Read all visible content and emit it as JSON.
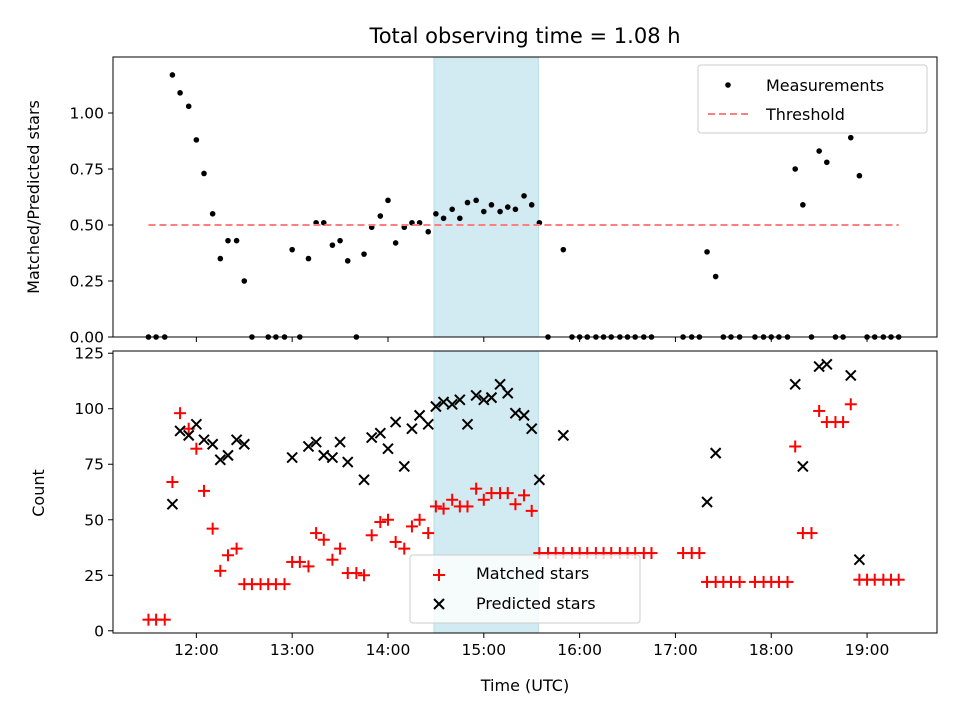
{
  "chart_data": [
    {
      "type": "scatter",
      "title": "Total observing time = 1.08 h",
      "xlabel": "",
      "ylabel": "Matched/Predicted stars",
      "xlim": [
        11.13,
        19.73
      ],
      "ylim": [
        0,
        1.25
      ],
      "yticks": [
        0,
        0.25,
        0.5,
        0.75,
        1.0
      ],
      "ytick_labels": [
        "0.00",
        "0.25",
        "0.50",
        "0.75",
        "1.00"
      ],
      "highlight_span": [
        14.48,
        15.57
      ],
      "legend_position": "top-right",
      "colors": {
        "measurements": "#000000",
        "threshold": "#ff7f7f",
        "span": "#add8e6"
      },
      "series": [
        {
          "name": "Measurements",
          "marker": "dot",
          "points": [
            [
              11.5,
              0
            ],
            [
              11.58,
              0
            ],
            [
              11.67,
              0
            ],
            [
              11.75,
              1.17
            ],
            [
              11.83,
              1.09
            ],
            [
              11.92,
              1.03
            ],
            [
              12.0,
              0.88
            ],
            [
              12.08,
              0.73
            ],
            [
              12.17,
              0.55
            ],
            [
              12.25,
              0.35
            ],
            [
              12.33,
              0.43
            ],
            [
              12.42,
              0.43
            ],
            [
              12.5,
              0.25
            ],
            [
              12.58,
              0
            ],
            [
              12.75,
              0
            ],
            [
              12.83,
              0
            ],
            [
              12.92,
              0
            ],
            [
              13.0,
              0.39
            ],
            [
              13.08,
              0
            ],
            [
              13.17,
              0.35
            ],
            [
              13.25,
              0.51
            ],
            [
              13.33,
              0.51
            ],
            [
              13.42,
              0.41
            ],
            [
              13.5,
              0.43
            ],
            [
              13.58,
              0.34
            ],
            [
              13.67,
              0
            ],
            [
              13.75,
              0.37
            ],
            [
              13.83,
              0.49
            ],
            [
              13.92,
              0.54
            ],
            [
              14.0,
              0.61
            ],
            [
              14.08,
              0.42
            ],
            [
              14.17,
              0.49
            ],
            [
              14.25,
              0.51
            ],
            [
              14.33,
              0.51
            ],
            [
              14.42,
              0.47
            ],
            [
              14.5,
              0.55
            ],
            [
              14.58,
              0.53
            ],
            [
              14.67,
              0.57
            ],
            [
              14.75,
              0.53
            ],
            [
              14.83,
              0.6
            ],
            [
              14.92,
              0.61
            ],
            [
              15.0,
              0.56
            ],
            [
              15.08,
              0.59
            ],
            [
              15.17,
              0.56
            ],
            [
              15.25,
              0.58
            ],
            [
              15.33,
              0.57
            ],
            [
              15.42,
              0.63
            ],
            [
              15.5,
              0.59
            ],
            [
              15.58,
              0.51
            ],
            [
              15.67,
              0
            ],
            [
              15.83,
              0.39
            ],
            [
              15.92,
              0
            ],
            [
              16.0,
              0
            ],
            [
              16.08,
              0
            ],
            [
              16.17,
              0
            ],
            [
              16.25,
              0
            ],
            [
              16.33,
              0
            ],
            [
              16.42,
              0
            ],
            [
              16.5,
              0
            ],
            [
              16.58,
              0
            ],
            [
              16.67,
              0
            ],
            [
              16.75,
              0
            ],
            [
              17.08,
              0
            ],
            [
              17.17,
              0
            ],
            [
              17.25,
              0
            ],
            [
              17.33,
              0.38
            ],
            [
              17.42,
              0.27
            ],
            [
              17.5,
              0
            ],
            [
              17.58,
              0
            ],
            [
              17.67,
              0
            ],
            [
              17.83,
              0
            ],
            [
              17.92,
              0
            ],
            [
              18.0,
              0
            ],
            [
              18.08,
              0
            ],
            [
              18.17,
              0
            ],
            [
              18.25,
              0.75
            ],
            [
              18.33,
              0.59
            ],
            [
              18.42,
              0
            ],
            [
              18.5,
              0.83
            ],
            [
              18.58,
              0.78
            ],
            [
              18.67,
              0
            ],
            [
              18.75,
              0
            ],
            [
              18.83,
              0.89
            ],
            [
              18.92,
              0.72
            ],
            [
              19.0,
              0
            ],
            [
              19.08,
              0
            ],
            [
              19.17,
              0
            ],
            [
              19.25,
              0
            ],
            [
              19.33,
              0
            ]
          ]
        },
        {
          "name": "Threshold",
          "marker": "dashed-line",
          "points": [
            [
              11.5,
              0.5
            ],
            [
              19.33,
              0.5
            ]
          ]
        }
      ]
    },
    {
      "type": "scatter",
      "title": "",
      "xlabel": "Time (UTC)",
      "ylabel": "Count",
      "xlim": [
        11.13,
        19.73
      ],
      "ylim": [
        -1,
        126
      ],
      "yticks": [
        0,
        25,
        50,
        75,
        100,
        125
      ],
      "ytick_labels": [
        "0",
        "25",
        "50",
        "75",
        "100",
        "125"
      ],
      "xticks": [
        12,
        13,
        14,
        15,
        16,
        17,
        18,
        19
      ],
      "xtick_labels": [
        "12:00",
        "13:00",
        "14:00",
        "15:00",
        "16:00",
        "17:00",
        "18:00",
        "19:00"
      ],
      "highlight_span": [
        14.48,
        15.57
      ],
      "legend_position": "bottom-center",
      "colors": {
        "matched": "#ff0000",
        "predicted": "#000000",
        "span": "#add8e6"
      },
      "series": [
        {
          "name": "Matched stars",
          "marker": "plus",
          "points": [
            [
              11.5,
              5
            ],
            [
              11.58,
              5
            ],
            [
              11.67,
              5
            ],
            [
              11.75,
              67
            ],
            [
              11.83,
              98
            ],
            [
              11.92,
              91
            ],
            [
              12.0,
              82
            ],
            [
              12.08,
              63
            ],
            [
              12.17,
              46
            ],
            [
              12.25,
              27
            ],
            [
              12.33,
              34
            ],
            [
              12.42,
              37
            ],
            [
              12.5,
              21
            ],
            [
              12.58,
              21
            ],
            [
              12.67,
              21
            ],
            [
              12.75,
              21
            ],
            [
              12.83,
              21
            ],
            [
              12.92,
              21
            ],
            [
              13.0,
              31
            ],
            [
              13.08,
              31
            ],
            [
              13.17,
              29
            ],
            [
              13.25,
              44
            ],
            [
              13.33,
              41
            ],
            [
              13.42,
              32
            ],
            [
              13.5,
              37
            ],
            [
              13.58,
              26
            ],
            [
              13.67,
              26
            ],
            [
              13.75,
              25
            ],
            [
              13.83,
              43
            ],
            [
              13.92,
              49
            ],
            [
              14.0,
              50
            ],
            [
              14.08,
              40
            ],
            [
              14.17,
              37
            ],
            [
              14.25,
              47
            ],
            [
              14.33,
              50
            ],
            [
              14.42,
              44
            ],
            [
              14.5,
              56
            ],
            [
              14.58,
              55
            ],
            [
              14.67,
              59
            ],
            [
              14.75,
              56
            ],
            [
              14.83,
              56
            ],
            [
              14.92,
              64
            ],
            [
              15.0,
              59
            ],
            [
              15.08,
              62
            ],
            [
              15.17,
              62
            ],
            [
              15.25,
              62
            ],
            [
              15.33,
              57
            ],
            [
              15.42,
              61
            ],
            [
              15.5,
              54
            ],
            [
              15.58,
              35
            ],
            [
              15.67,
              35
            ],
            [
              15.75,
              35
            ],
            [
              15.83,
              35
            ],
            [
              15.92,
              35
            ],
            [
              16.0,
              35
            ],
            [
              16.08,
              35
            ],
            [
              16.17,
              35
            ],
            [
              16.25,
              35
            ],
            [
              16.33,
              35
            ],
            [
              16.42,
              35
            ],
            [
              16.5,
              35
            ],
            [
              16.58,
              35
            ],
            [
              16.67,
              35
            ],
            [
              16.75,
              35
            ],
            [
              17.08,
              35
            ],
            [
              17.17,
              35
            ],
            [
              17.25,
              35
            ],
            [
              17.33,
              22
            ],
            [
              17.42,
              22
            ],
            [
              17.5,
              22
            ],
            [
              17.58,
              22
            ],
            [
              17.67,
              22
            ],
            [
              17.83,
              22
            ],
            [
              17.92,
              22
            ],
            [
              18.0,
              22
            ],
            [
              18.08,
              22
            ],
            [
              18.17,
              22
            ],
            [
              18.25,
              83
            ],
            [
              18.33,
              44
            ],
            [
              18.42,
              44
            ],
            [
              18.5,
              99
            ],
            [
              18.58,
              94
            ],
            [
              18.67,
              94
            ],
            [
              18.75,
              94
            ],
            [
              18.83,
              102
            ],
            [
              18.92,
              23
            ],
            [
              19.0,
              23
            ],
            [
              19.08,
              23
            ],
            [
              19.17,
              23
            ],
            [
              19.25,
              23
            ],
            [
              19.33,
              23
            ]
          ]
        },
        {
          "name": "Predicted stars",
          "marker": "x",
          "points": [
            [
              11.75,
              57
            ],
            [
              11.83,
              90
            ],
            [
              11.92,
              88
            ],
            [
              12.0,
              93
            ],
            [
              12.08,
              86
            ],
            [
              12.17,
              84
            ],
            [
              12.25,
              77
            ],
            [
              12.33,
              79
            ],
            [
              12.42,
              86
            ],
            [
              12.5,
              84
            ],
            [
              13.0,
              78
            ],
            [
              13.17,
              83
            ],
            [
              13.25,
              85
            ],
            [
              13.33,
              79
            ],
            [
              13.42,
              78
            ],
            [
              13.5,
              85
            ],
            [
              13.58,
              76
            ],
            [
              13.75,
              68
            ],
            [
              13.83,
              87
            ],
            [
              13.92,
              89
            ],
            [
              14.0,
              82
            ],
            [
              14.08,
              94
            ],
            [
              14.17,
              74
            ],
            [
              14.25,
              91
            ],
            [
              14.33,
              97
            ],
            [
              14.42,
              93
            ],
            [
              14.5,
              101
            ],
            [
              14.58,
              103
            ],
            [
              14.67,
              102
            ],
            [
              14.75,
              104
            ],
            [
              14.83,
              93
            ],
            [
              14.92,
              106
            ],
            [
              15.0,
              104
            ],
            [
              15.08,
              105
            ],
            [
              15.17,
              111
            ],
            [
              15.25,
              107
            ],
            [
              15.33,
              98
            ],
            [
              15.42,
              97
            ],
            [
              15.5,
              91
            ],
            [
              15.58,
              68
            ],
            [
              15.83,
              88
            ],
            [
              17.33,
              58
            ],
            [
              17.42,
              80
            ],
            [
              18.25,
              111
            ],
            [
              18.33,
              74
            ],
            [
              18.5,
              119
            ],
            [
              18.58,
              120
            ],
            [
              18.83,
              115
            ],
            [
              18.92,
              32
            ]
          ]
        }
      ]
    }
  ]
}
